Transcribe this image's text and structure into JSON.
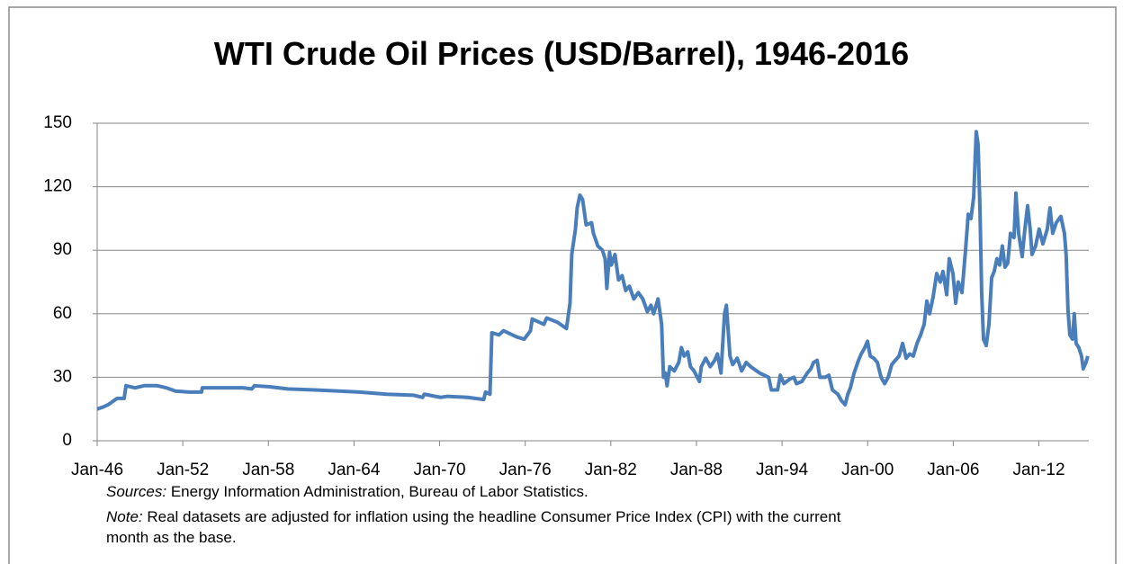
{
  "chart_data": {
    "type": "line",
    "title": "WTI Crude Oil Prices (USD/Barrel), 1946-2016",
    "xlim": [
      1946,
      2015.5
    ],
    "ylim": [
      0,
      150
    ],
    "yticks": [
      0,
      30,
      60,
      90,
      120,
      150
    ],
    "xticks": [
      {
        "value": 1946,
        "label": "Jan-46"
      },
      {
        "value": 1952,
        "label": "Jan-52"
      },
      {
        "value": 1958,
        "label": "Jan-58"
      },
      {
        "value": 1964,
        "label": "Jan-64"
      },
      {
        "value": 1970,
        "label": "Jan-70"
      },
      {
        "value": 1976,
        "label": "Jan-76"
      },
      {
        "value": 1982,
        "label": "Jan-82"
      },
      {
        "value": 1988,
        "label": "Jan-88"
      },
      {
        "value": 1994,
        "label": "Jan-94"
      },
      {
        "value": 2000,
        "label": "Jan-00"
      },
      {
        "value": 2006,
        "label": "Jan-06"
      },
      {
        "value": 2012,
        "label": "Jan-12"
      }
    ],
    "grid": true,
    "series": [
      {
        "color": "#4a7ebb",
        "x": [
          1946.0,
          1946.44,
          1946.76,
          1947.39,
          1947.89,
          1948.02,
          1948.65,
          1949.28,
          1950.22,
          1950.85,
          1951.48,
          1952.43,
          1953.31,
          1953.37,
          1954.95,
          1956.21,
          1956.84,
          1957.03,
          1958.1,
          1959.36,
          1961.25,
          1964.4,
          1966.29,
          1968.18,
          1968.81,
          1968.93,
          1970.07,
          1970.57,
          1971.96,
          1973.09,
          1973.22,
          1973.53,
          1973.66,
          1974.16,
          1974.48,
          1975.42,
          1975.93,
          1976.37,
          1976.49,
          1977.31,
          1977.5,
          1978.26,
          1978.89,
          1979.14,
          1979.26,
          1979.52,
          1979.64,
          1979.83,
          1980.02,
          1980.27,
          1980.65,
          1980.78,
          1981.09,
          1981.41,
          1981.6,
          1981.72,
          1981.91,
          1982.04,
          1982.29,
          1982.54,
          1982.79,
          1983.04,
          1983.3,
          1983.61,
          1983.93,
          1984.24,
          1984.56,
          1984.81,
          1985.0,
          1985.31,
          1985.56,
          1985.69,
          1985.82,
          1985.94,
          1986.13,
          1986.45,
          1986.76,
          1986.95,
          1987.14,
          1987.39,
          1987.58,
          1987.83,
          1988.21,
          1988.34,
          1988.65,
          1988.97,
          1989.28,
          1989.47,
          1989.72,
          1989.97,
          1990.1,
          1990.35,
          1990.54,
          1990.86,
          1991.17,
          1991.49,
          1991.8,
          1992.43,
          1993.06,
          1993.25,
          1993.69,
          1993.88,
          1994.13,
          1994.51,
          1994.83,
          1995.01,
          1995.39,
          1995.77,
          1996.02,
          1996.21,
          1996.46,
          1996.65,
          1997.03,
          1997.28,
          1997.53,
          1997.91,
          1998.16,
          1998.42,
          1998.61,
          1998.79,
          1999.05,
          1999.36,
          1999.55,
          1999.8,
          1999.99,
          2000.18,
          2000.43,
          2000.68,
          2000.94,
          2001.19,
          2001.44,
          2001.69,
          2001.94,
          2002.2,
          2002.45,
          2002.7,
          2002.95,
          2003.2,
          2003.46,
          2003.71,
          2003.96,
          2004.15,
          2004.34,
          2004.59,
          2004.84,
          2005.09,
          2005.28,
          2005.54,
          2005.72,
          2005.98,
          2006.17,
          2006.35,
          2006.61,
          2006.86,
          2007.05,
          2007.24,
          2007.43,
          2007.61,
          2007.74,
          2007.87,
          2007.99,
          2008.12,
          2008.31,
          2008.5,
          2008.69,
          2008.87,
          2009.06,
          2009.25,
          2009.44,
          2009.63,
          2009.82,
          2010.01,
          2010.26,
          2010.39,
          2010.58,
          2010.83,
          2011.02,
          2011.21,
          2011.39,
          2011.52,
          2011.77,
          2012.02,
          2012.28,
          2012.59,
          2012.78,
          2012.97,
          2013.22,
          2013.54,
          2013.79,
          2013.91,
          2014.04,
          2014.17,
          2014.36,
          2014.48,
          2014.61,
          2014.8,
          2014.99,
          2015.11,
          2015.3,
          2015.43
        ],
        "values": [
          15,
          16,
          17,
          20,
          20,
          26,
          25,
          26,
          26,
          25,
          23.5,
          23,
          23,
          25,
          25,
          25,
          24.5,
          26,
          25.5,
          24.5,
          24,
          23,
          22,
          21.5,
          20.5,
          22,
          20.5,
          21,
          20.5,
          19.5,
          23,
          22,
          51,
          50,
          52,
          49,
          48,
          52,
          57.5,
          55,
          58,
          56,
          53,
          65,
          88,
          100,
          110,
          116,
          114,
          102,
          103,
          98,
          92,
          90,
          86,
          72,
          89,
          83,
          88,
          76,
          78,
          71,
          73,
          67,
          70,
          67,
          61,
          64,
          60,
          67,
          55,
          30,
          32,
          26,
          35,
          33,
          37,
          44,
          40,
          42,
          35,
          33,
          28,
          35,
          39,
          35,
          38,
          41,
          32,
          60,
          64,
          40,
          36,
          39,
          33,
          37,
          35,
          32,
          30,
          24,
          24,
          31,
          27,
          29,
          30,
          27,
          28,
          32,
          34,
          37,
          38,
          30,
          30,
          31,
          24,
          22,
          19,
          17,
          22,
          25,
          32,
          38,
          41,
          44,
          47,
          40,
          39,
          37,
          30,
          27,
          30,
          36,
          38,
          40,
          46,
          39,
          41,
          40,
          46,
          50,
          55,
          66,
          60,
          68,
          79,
          75,
          80,
          69,
          86,
          79,
          65,
          75,
          70,
          90,
          107,
          105,
          115,
          146,
          140,
          110,
          70,
          48,
          45,
          55,
          77,
          80,
          86,
          83,
          92,
          82,
          84,
          98,
          96,
          117,
          98,
          87,
          100,
          111,
          100,
          88,
          92,
          100,
          93,
          100,
          110,
          98,
          103,
          106,
          98,
          88,
          62,
          50,
          48,
          60,
          46,
          44,
          40,
          34,
          37,
          40
        ]
      }
    ],
    "notes": [
      {
        "label": "Sources:",
        "text": " Energy Information Administration, Bureau of Labor Statistics."
      },
      {
        "label": "Note:",
        "text": " Real datasets are adjusted for inflation using the headline Consumer Price Index (CPI) with the current"
      }
    ],
    "note_continuation": "month as the base."
  }
}
